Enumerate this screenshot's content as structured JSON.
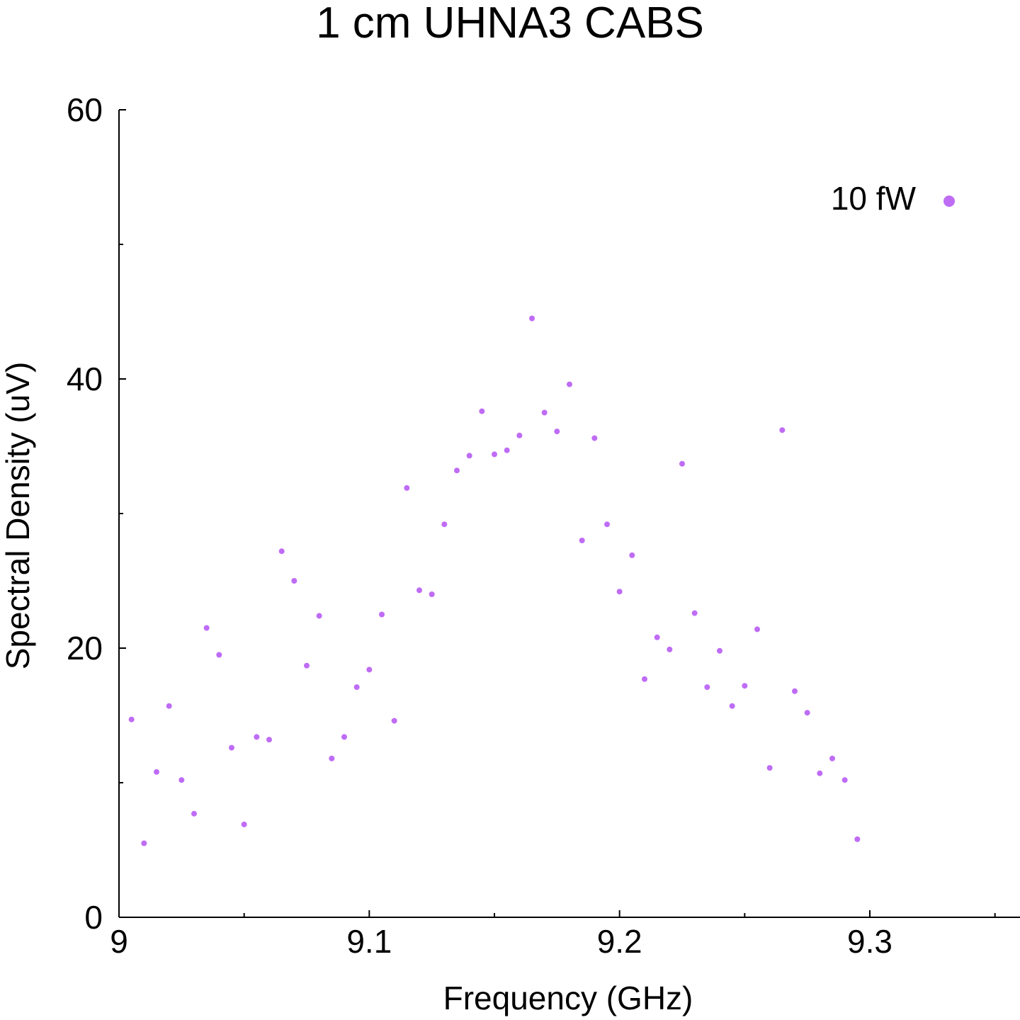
{
  "chart_data": {
    "type": "scatter",
    "title": "1 cm UHNA3 CABS",
    "xlabel": "Frequency (GHz)",
    "ylabel": "Spectral Density (uV)",
    "xlim": [
      9.0,
      9.36
    ],
    "ylim": [
      0,
      60
    ],
    "x_ticks": [
      "9",
      "9.1",
      "9.2",
      "9.3"
    ],
    "x_tick_values": [
      9.0,
      9.1,
      9.2,
      9.3
    ],
    "x_minor_tick_values": [
      9.05,
      9.15,
      9.25,
      9.35
    ],
    "y_ticks": [
      "0",
      "20",
      "40",
      "60"
    ],
    "y_tick_values": [
      0,
      20,
      40,
      60
    ],
    "y_minor_tick_values": [
      10,
      30,
      50
    ],
    "grid": false,
    "legend_position": "top-right",
    "series": [
      {
        "name": "10 fW",
        "color": "#bf6cf5",
        "x": [
          9.005,
          9.01,
          9.015,
          9.02,
          9.025,
          9.03,
          9.035,
          9.04,
          9.045,
          9.05,
          9.055,
          9.06,
          9.065,
          9.07,
          9.075,
          9.08,
          9.085,
          9.09,
          9.095,
          9.1,
          9.105,
          9.11,
          9.115,
          9.12,
          9.125,
          9.13,
          9.135,
          9.14,
          9.145,
          9.15,
          9.155,
          9.16,
          9.165,
          9.17,
          9.175,
          9.18,
          9.185,
          9.19,
          9.195,
          9.2,
          9.205,
          9.21,
          9.215,
          9.22,
          9.225,
          9.23,
          9.235,
          9.24,
          9.245,
          9.25,
          9.255,
          9.26,
          9.265,
          9.27,
          9.275,
          9.28,
          9.285,
          9.29,
          9.295
        ],
        "y": [
          14.7,
          5.5,
          10.8,
          15.7,
          10.2,
          7.7,
          21.5,
          19.5,
          12.6,
          6.9,
          13.4,
          13.2,
          27.2,
          25.0,
          18.7,
          22.4,
          11.8,
          13.4,
          17.1,
          18.4,
          22.5,
          14.6,
          31.9,
          24.3,
          24.0,
          29.2,
          33.2,
          34.3,
          37.6,
          34.4,
          34.7,
          35.8,
          44.5,
          37.5,
          36.1,
          39.6,
          28.0,
          35.6,
          29.2,
          24.2,
          26.9,
          17.7,
          20.8,
          19.9,
          33.7,
          22.6,
          17.1,
          19.8,
          15.7,
          17.2,
          21.4,
          11.1,
          36.2,
          16.8,
          15.2,
          10.7,
          11.8,
          10.2,
          5.8
        ]
      }
    ]
  }
}
